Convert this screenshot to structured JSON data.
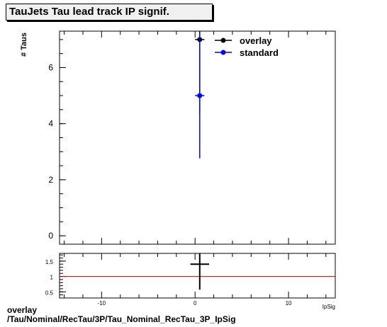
{
  "title": "TauJets Tau lead track IP signif.",
  "footer": {
    "line1": "overlay",
    "line2": "/Tau/Nominal/RecTau/3P/Tau_Nominal_RecTau_3P_IpSig"
  },
  "chart_data": [
    {
      "type": "scatter",
      "title": "TauJets Tau lead track IP signif.",
      "xlabel": "IpSig",
      "ylabel": "# Taus",
      "xlim": [
        -14.5,
        15
      ],
      "ylim": [
        -0.3,
        7.3
      ],
      "y_ticks": [
        0,
        2,
        4,
        6
      ],
      "legend_position": "top-right",
      "series": [
        {
          "name": "overlay",
          "color": "#000000",
          "x": [
            0.5
          ],
          "y": [
            7
          ],
          "yerr": [
            2.65
          ],
          "xerr": [
            0.5
          ]
        },
        {
          "name": "standard",
          "color": "#0000ff",
          "x": [
            0.5
          ],
          "y": [
            5
          ],
          "yerr": [
            2.24
          ],
          "xerr": [
            0.5
          ]
        }
      ]
    },
    {
      "type": "scatter",
      "xlabel": "IpSig",
      "xlim": [
        -14.5,
        15
      ],
      "ylim": [
        0.3,
        1.75
      ],
      "y_ticks": [
        0.5,
        1,
        1.5
      ],
      "x_ticks": [
        -10,
        0,
        10
      ],
      "reference_line": {
        "y": 1,
        "color": "#cc0000"
      },
      "series": [
        {
          "color": "#000000",
          "x": [
            0.5
          ],
          "y": [
            1.4
          ],
          "yerr": [
            0.83
          ],
          "xerr": [
            0.5
          ]
        }
      ]
    }
  ]
}
